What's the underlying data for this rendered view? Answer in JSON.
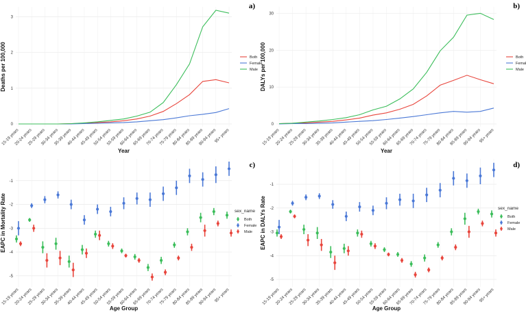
{
  "chart_data": [
    {
      "panel": "a)",
      "type": "line",
      "ylabel": "Deaths per 100,000",
      "xlabel": "Year",
      "ylim": [
        0,
        3.2
      ],
      "yticks": [
        "0",
        "1",
        "2",
        "3"
      ],
      "ytick_values": [
        0,
        1,
        2,
        3
      ],
      "categories": [
        "15-19 years",
        "20-24 years",
        "25-29 years",
        "30-34 years",
        "35-39 years",
        "40-44 years",
        "45-49 years",
        "50-54 years",
        "55-59 years",
        "60-64 years",
        "65-69 years",
        "70-74 years",
        "75-79 years",
        "80-84 years",
        "85-89 years",
        "90-94 years",
        "95+ years"
      ],
      "series": [
        {
          "name": "Both",
          "color": "#e8453c",
          "values": [
            0,
            0,
            0,
            0,
            0.01,
            0.02,
            0.04,
            0.06,
            0.09,
            0.14,
            0.22,
            0.35,
            0.57,
            0.82,
            1.19,
            1.24,
            1.15
          ]
        },
        {
          "name": "Female",
          "color": "#4a78d6",
          "values": [
            0,
            0,
            0,
            0,
            0,
            0.01,
            0.02,
            0.03,
            0.04,
            0.06,
            0.09,
            0.12,
            0.17,
            0.23,
            0.27,
            0.32,
            0.43
          ]
        },
        {
          "name": "Male",
          "color": "#3bbd5a",
          "values": [
            0,
            0,
            0,
            0,
            0.01,
            0.03,
            0.06,
            0.1,
            0.14,
            0.22,
            0.33,
            0.6,
            1.1,
            1.68,
            2.72,
            3.18,
            3.1
          ]
        }
      ],
      "legend": [
        "Both",
        "Female",
        "Male"
      ]
    },
    {
      "panel": "b)",
      "type": "line",
      "ylabel": "DALYs per 100,000",
      "xlabel": "Year",
      "ylim": [
        0,
        31
      ],
      "yticks": [
        "0",
        "10",
        "20",
        "30"
      ],
      "ytick_values": [
        0,
        10,
        20,
        30
      ],
      "categories": [
        "15-19 years",
        "20-24 years",
        "25-29 years",
        "30-34 years",
        "35-39 years",
        "40-44 years",
        "45-49 years",
        "50-54 years",
        "55-59 years",
        "60-64 years",
        "65-69 years",
        "70-74 years",
        "75-79 years",
        "80-84 years",
        "85-89 years",
        "90-94 years",
        "95+ years"
      ],
      "series": [
        {
          "name": "Both",
          "color": "#e8453c",
          "values": [
            0.1,
            0.2,
            0.3,
            0.5,
            0.7,
            1.1,
            1.6,
            2.4,
            3.0,
            4.0,
            5.3,
            7.6,
            10.5,
            11.8,
            13.2,
            12.0,
            10.9
          ]
        },
        {
          "name": "Female",
          "color": "#4a78d6",
          "values": [
            0,
            0.1,
            0.1,
            0.2,
            0.3,
            0.5,
            0.7,
            0.9,
            1.2,
            1.6,
            2.0,
            2.5,
            3.0,
            3.4,
            3.2,
            3.4,
            4.3
          ]
        },
        {
          "name": "Male",
          "color": "#3bbd5a",
          "values": [
            0.1,
            0.2,
            0.5,
            0.8,
            1.2,
            1.7,
            2.5,
            3.8,
            4.8,
            6.8,
            9.5,
            14.0,
            19.8,
            23.5,
            29.5,
            30.0,
            28.3
          ]
        }
      ],
      "legend": [
        "Both",
        "Female",
        "Male"
      ]
    },
    {
      "panel": "c)",
      "type": "scatter",
      "ylabel": "EAPC in Mortality Rate",
      "xlabel": "Age Group",
      "ylim": [
        -5.35,
        -0.2
      ],
      "yticks": [
        "-1",
        "-2",
        "-3",
        "-4",
        "-5"
      ],
      "ytick_values": [
        -1,
        -2,
        -3,
        -4,
        -5
      ],
      "legend_title": "sex_name",
      "categories": [
        "15-19 years",
        "20-24 years",
        "25-29 years",
        "30-34 years",
        "35-39 years",
        "40-44 years",
        "45-49 years",
        "50-54 years",
        "55-59 years",
        "60-64 years",
        "65-69 years",
        "70-74 years",
        "75-79 years",
        "80-84 years",
        "85-89 years",
        "90-94 years",
        "95+ years"
      ],
      "series": [
        {
          "name": "Both",
          "color": "#3bbd5a",
          "values": [
            -3.45,
            -2.65,
            -3.8,
            -3.65,
            -4.4,
            -3.9,
            -3.25,
            -3.65,
            -3.95,
            -4.2,
            -4.65,
            -4.35,
            -3.7,
            -3.15,
            -2.55,
            -2.3,
            -2.45
          ],
          "errors": [
            0.15,
            0.08,
            0.25,
            0.25,
            0.25,
            0.2,
            0.15,
            0.12,
            0.1,
            0.12,
            0.15,
            0.15,
            0.12,
            0.15,
            0.2,
            0.15,
            0.15
          ]
        },
        {
          "name": "Female",
          "color": "#4a78d6",
          "values": [
            -3.0,
            -2.05,
            -1.8,
            -1.6,
            -2.0,
            -2.65,
            -2.2,
            -2.3,
            -1.95,
            -1.75,
            -1.8,
            -1.55,
            -1.3,
            -0.8,
            -0.95,
            -0.75,
            -0.5
          ],
          "errors": [
            0.3,
            0.1,
            0.15,
            0.15,
            0.2,
            0.2,
            0.2,
            0.2,
            0.25,
            0.25,
            0.3,
            0.3,
            0.3,
            0.3,
            0.3,
            0.35,
            0.3
          ]
        },
        {
          "name": "Male",
          "color": "#e8453c",
          "values": [
            -3.65,
            -3.0,
            -4.35,
            -4.25,
            -4.75,
            -4.05,
            -3.3,
            -3.75,
            -4.15,
            -4.35,
            -5.05,
            -4.85,
            -4.25,
            -3.8,
            -3.1,
            -2.8,
            -3.2
          ],
          "errors": [
            0.1,
            0.15,
            0.3,
            0.3,
            0.3,
            0.2,
            0.2,
            0.12,
            0.08,
            0.1,
            0.15,
            0.12,
            0.1,
            0.15,
            0.25,
            0.12,
            0.15
          ]
        }
      ],
      "legend": [
        "Both",
        "Female",
        "Male"
      ]
    },
    {
      "panel": "d)",
      "type": "scatter",
      "ylabel": "EAPC in DALYs Rate",
      "xlabel": "Age Group",
      "ylim": [
        -5.2,
        -0.05
      ],
      "yticks": [
        "-1",
        "-2",
        "-3",
        "-4",
        "-5"
      ],
      "ytick_values": [
        -1,
        -2,
        -3,
        -4,
        -5
      ],
      "legend_title": "sex_name",
      "categories": [
        "15-19 years",
        "20-24 years",
        "25-29 years",
        "30-34 years",
        "35-39 years",
        "40-44 years",
        "45-49 years",
        "50-54 years",
        "55-59 years",
        "60-64 years",
        "65-69 years",
        "70-74 years",
        "75-79 years",
        "80-84 years",
        "85-89 years",
        "90-94 years",
        "95+ years"
      ],
      "series": [
        {
          "name": "Both",
          "color": "#3bbd5a",
          "values": [
            -3.05,
            -2.15,
            -2.9,
            -3.05,
            -3.85,
            -3.7,
            -3.05,
            -3.5,
            -3.75,
            -3.95,
            -4.35,
            -4.1,
            -3.55,
            -3.0,
            -2.45,
            -2.15,
            -2.25
          ],
          "errors": [
            0.15,
            0.08,
            0.2,
            0.25,
            0.25,
            0.2,
            0.15,
            0.12,
            0.1,
            0.1,
            0.12,
            0.15,
            0.12,
            0.15,
            0.25,
            0.12,
            0.15
          ]
        },
        {
          "name": "Female",
          "color": "#4a78d6",
          "values": [
            -2.8,
            -1.8,
            -1.55,
            -1.5,
            -1.85,
            -2.35,
            -1.95,
            -2.1,
            -1.8,
            -1.65,
            -1.7,
            -1.45,
            -1.25,
            -0.75,
            -0.85,
            -0.65,
            -0.4
          ],
          "errors": [
            0.3,
            0.1,
            0.12,
            0.12,
            0.18,
            0.2,
            0.2,
            0.2,
            0.25,
            0.25,
            0.3,
            0.3,
            0.3,
            0.3,
            0.3,
            0.35,
            0.3
          ]
        },
        {
          "name": "Male",
          "color": "#e8453c",
          "values": [
            -3.2,
            -2.35,
            -3.35,
            -3.55,
            -4.3,
            -3.8,
            -3.1,
            -3.6,
            -3.95,
            -4.2,
            -4.8,
            -4.6,
            -4.1,
            -3.65,
            -3.0,
            -2.65,
            -3.05
          ],
          "errors": [
            0.1,
            0.08,
            0.25,
            0.25,
            0.3,
            0.2,
            0.15,
            0.12,
            0.08,
            0.1,
            0.12,
            0.1,
            0.1,
            0.12,
            0.25,
            0.12,
            0.15
          ]
        }
      ],
      "legend": [
        "Both",
        "Female",
        "Male"
      ]
    }
  ]
}
